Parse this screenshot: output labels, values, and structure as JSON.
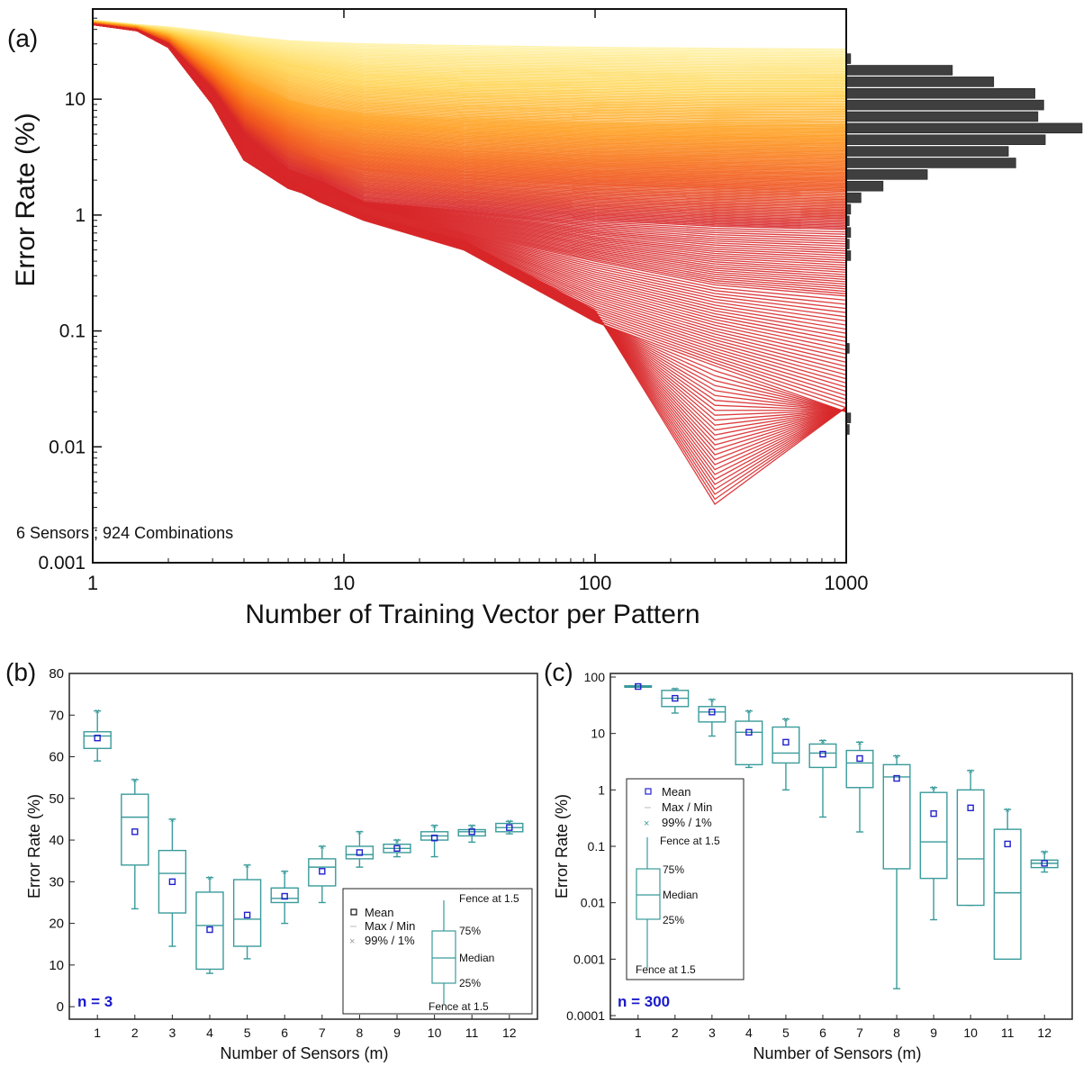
{
  "chart_data": [
    {
      "panel": "(a)",
      "type": "line",
      "xlabel": "Number of Training Vector per Pattern",
      "ylabel": "Error Rate (%)",
      "xscale": "log",
      "yscale": "log",
      "xlim": [
        1,
        1000
      ],
      "ylim": [
        0.001,
        60
      ],
      "x_ticks": [
        "1",
        "10",
        "100",
        "1000"
      ],
      "y_ticks": [
        "0.001",
        "0.01",
        "0.1",
        "1",
        "10"
      ],
      "annotation": "6 Sensors ; 924 Combinations",
      "line_count": 924,
      "colormap": [
        "#fff6b0",
        "#ffd34d",
        "#ff9a1a",
        "#f25a1a",
        "#d8282a"
      ],
      "x": [
        1,
        1.5,
        2,
        3,
        4,
        6,
        8,
        12,
        30,
        100,
        300,
        1000
      ],
      "series_examples": [
        {
          "values": [
            48,
            44,
            42,
            38,
            35,
            32,
            31,
            30,
            29,
            28,
            27.5,
            27
          ]
        },
        {
          "values": [
            47,
            43,
            38,
            30,
            24,
            19,
            17,
            15,
            14,
            13.5,
            13,
            13
          ]
        },
        {
          "values": [
            46,
            42,
            35,
            22,
            15,
            10,
            8.5,
            7.5,
            6.8,
            6.3,
            6.1,
            6
          ]
        },
        {
          "values": [
            45,
            41,
            33,
            17,
            10,
            6.3,
            5,
            4.2,
            3.6,
            3.3,
            3.2,
            3.1
          ]
        },
        {
          "values": [
            45,
            40,
            31,
            14,
            7,
            4,
            3,
            2.4,
            2,
            1.8,
            1.7,
            1.6
          ]
        },
        {
          "values": [
            44,
            40,
            30,
            12,
            5,
            2.5,
            2,
            1.3,
            1.1,
            0.9,
            0.8,
            0.75
          ]
        },
        {
          "values": [
            44,
            40,
            29,
            10,
            4,
            2,
            1.6,
            1.2,
            0.7,
            0.4,
            0.25,
            0.2
          ]
        },
        {
          "values": [
            44,
            39,
            28,
            9,
            3,
            1.8,
            1.3,
            0.9,
            0.5,
            0.12,
            0.05,
            0.02
          ]
        },
        {
          "values": [
            44,
            39,
            28,
            9,
            3,
            1.7,
            1.4,
            1,
            0.6,
            0.15,
            0.0032,
            0.022
          ]
        }
      ],
      "histogram": {
        "orientation": "horizontal",
        "bin_edges_log": [
          -3,
          -2.9,
          -2.8,
          -2.7,
          -2.6,
          -2.5,
          -2.4,
          -2.3,
          -2.2,
          -2.1,
          -2,
          -1.9,
          -1.8,
          -1.7,
          -1.6,
          -1.5,
          -1.4,
          -1.3,
          -1.2,
          -1.1,
          -1,
          -0.9,
          -0.8,
          -0.7,
          -0.6,
          -0.5,
          -0.4,
          -0.3,
          -0.2,
          -0.1,
          0,
          0.1,
          0.2,
          0.3,
          0.4,
          0.5,
          0.6,
          0.7,
          0.8,
          0.9,
          1,
          1.1,
          1.2,
          1.3,
          1.4
        ],
        "counts": [
          0,
          0,
          0,
          0,
          0,
          0,
          0,
          0,
          0,
          0,
          0,
          2,
          3,
          0,
          0,
          0,
          0,
          0,
          2,
          0,
          0,
          0,
          0,
          0,
          0,
          0,
          3,
          2,
          3,
          2,
          3,
          10,
          25,
          55,
          115,
          110,
          135,
          160,
          130,
          134,
          128,
          100,
          72,
          3
        ]
      }
    },
    {
      "panel": "(b)",
      "type": "box",
      "xlabel": "Number of Sensors (m)",
      "ylabel": "Error Rate (%)",
      "ylim": [
        -3,
        80
      ],
      "y_ticks": [
        "0",
        "10",
        "20",
        "30",
        "40",
        "50",
        "60",
        "70",
        "80"
      ],
      "categories": [
        "1",
        "2",
        "3",
        "4",
        "5",
        "6",
        "7",
        "8",
        "9",
        "10",
        "11",
        "12"
      ],
      "annotation": "n = 3",
      "boxes": [
        {
          "min": 59,
          "q1": 62,
          "median": 65,
          "q3": 66,
          "max": 71,
          "mean": 64.5
        },
        {
          "min": 23.5,
          "q1": 34,
          "median": 45.5,
          "q3": 51,
          "max": 54.5,
          "mean": 42
        },
        {
          "min": 14.5,
          "q1": 22.5,
          "median": 32,
          "q3": 37.5,
          "max": 45,
          "mean": 30
        },
        {
          "min": 8,
          "q1": 9,
          "median": 19.5,
          "q3": 27.5,
          "max": 31,
          "mean": 18.5
        },
        {
          "min": 11.5,
          "q1": 14.5,
          "median": 21,
          "q3": 30.5,
          "max": 34,
          "mean": 22
        },
        {
          "min": 20,
          "q1": 25,
          "median": 26,
          "q3": 28.5,
          "max": 32.5,
          "mean": 26.5
        },
        {
          "min": 25,
          "q1": 29,
          "median": 33.5,
          "q3": 35.5,
          "max": 38.5,
          "mean": 32.5
        },
        {
          "min": 33.5,
          "q1": 35.5,
          "median": 36.5,
          "q3": 38.5,
          "max": 42,
          "mean": 37
        },
        {
          "min": 36,
          "q1": 37,
          "median": 38,
          "q3": 39,
          "max": 40,
          "mean": 38
        },
        {
          "min": 36,
          "q1": 40,
          "median": 41,
          "q3": 42,
          "max": 43.5,
          "mean": 40.5
        },
        {
          "min": 39.5,
          "q1": 41,
          "median": 42,
          "q3": 42.5,
          "max": 43.5,
          "mean": 42
        },
        {
          "min": 41.5,
          "q1": 42,
          "median": 43,
          "q3": 44,
          "max": 44.5,
          "mean": 43
        }
      ]
    },
    {
      "panel": "(c)",
      "type": "box",
      "xlabel": "Number of Sensors (m)",
      "ylabel": "Error Rate (%)",
      "yscale": "log",
      "ylim": [
        0.0001,
        100
      ],
      "y_ticks": [
        "0.0001",
        "0.001",
        "0.01",
        "0.1",
        "1",
        "10",
        "100"
      ],
      "categories": [
        "1",
        "2",
        "3",
        "4",
        "5",
        "6",
        "7",
        "8",
        "9",
        "10",
        "11",
        "12"
      ],
      "annotation": "n = 300",
      "boxes": [
        {
          "min": 66,
          "q1": 66,
          "median": 68,
          "q3": 70,
          "max": 70,
          "mean": 68
        },
        {
          "min": 23,
          "q1": 30,
          "median": 42,
          "q3": 58,
          "max": 62,
          "mean": 42
        },
        {
          "min": 9,
          "q1": 16,
          "median": 24,
          "q3": 30,
          "max": 40,
          "mean": 24
        },
        {
          "min": 2.5,
          "q1": 2.8,
          "median": 10.5,
          "q3": 16.5,
          "max": 25,
          "mean": 10.5
        },
        {
          "min": 1,
          "q1": 3,
          "median": 4.5,
          "q3": 13,
          "max": 18,
          "mean": 7
        },
        {
          "min": 0.33,
          "q1": 2.5,
          "median": 4.5,
          "q3": 6.5,
          "max": 7.5,
          "mean": 4.3
        },
        {
          "min": 0.18,
          "q1": 1.1,
          "median": 3,
          "q3": 5,
          "max": 7,
          "mean": 3.6
        },
        {
          "min": 0.0003,
          "q1": 0.04,
          "median": 1.7,
          "q3": 2.8,
          "max": 4,
          "mean": 1.6
        },
        {
          "min": 0.005,
          "q1": 0.027,
          "median": 0.12,
          "q3": 0.9,
          "max": 1.1,
          "mean": 0.38
        },
        {
          "min": 0.009,
          "q1": 0.009,
          "median": 0.06,
          "q3": 1,
          "max": 2.2,
          "mean": 0.48
        },
        {
          "min": 0.001,
          "q1": 0.001,
          "median": 0.015,
          "q3": 0.2,
          "max": 0.45,
          "mean": 0.11
        },
        {
          "min": 0.035,
          "q1": 0.042,
          "median": 0.05,
          "q3": 0.057,
          "max": 0.08,
          "mean": 0.05
        }
      ]
    }
  ],
  "labels": {
    "panel_a": "(a)",
    "panel_b": "(b)",
    "panel_c": "(c)",
    "legend_mean": "Mean",
    "legend_maxmin": "Max / Min",
    "legend_pct": "99% / 1%",
    "legend_fence": "Fence at 1.5",
    "legend_75": "75%",
    "legend_median": "Median",
    "legend_25": "25%"
  },
  "colors": {
    "box": "#3a9b9b",
    "mean_marker": "#2222cc",
    "annotation_blue": "#1a1acc",
    "hist_fill": "#555555"
  }
}
